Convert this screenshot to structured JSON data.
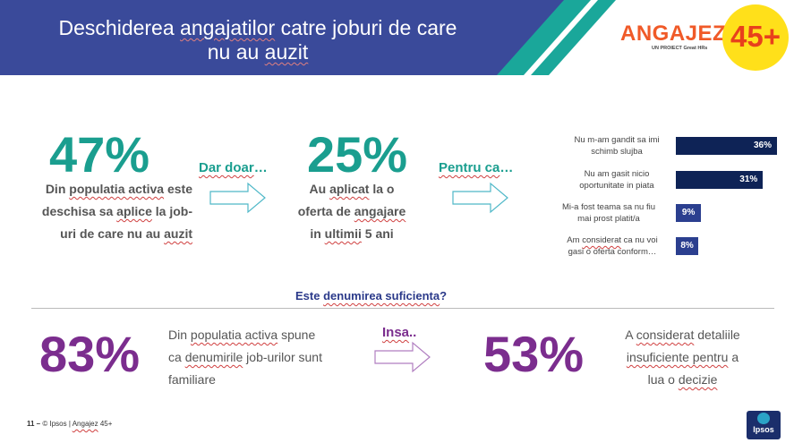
{
  "header": {
    "title_line1": "Deschiderea angajatilor catre joburi de care",
    "title_line2": "nu au auzit",
    "logo_text": "ANGAJEZ",
    "logo_sub": "UN PROIECT Great HRs",
    "logo_num": "45+",
    "colors": {
      "band": "#3a4a9a",
      "stripe": "#1aa79a",
      "logo_circle": "#ffe01a"
    }
  },
  "top": {
    "stat1": {
      "value": "47%",
      "text_lines": [
        "Din populatia activa este",
        "deschisa sa aplice la job-",
        "uri de care nu au auzit"
      ]
    },
    "connector1": "Dar doar…",
    "stat2": {
      "value": "25%",
      "text_lines": [
        "Au aplicat la o",
        "oferta de angajare",
        "in ultimii 5 ani"
      ]
    },
    "connector2": "Pentru ca…"
  },
  "chart_data": {
    "type": "bar",
    "orientation": "horizontal",
    "categories": [
      "Nu m-am gandit sa imi schimb slujba",
      "Nu am gasit nicio oportunitate in piata",
      "Mi-a fost teama sa nu fiu mai prost platit/a",
      "Am considerat ca nu voi gasi o oferta conform…"
    ],
    "category_lines": [
      [
        "Nu m-am gandit sa imi",
        "schimb slujba"
      ],
      [
        "Nu am gasit nicio",
        "oportunitate in piata"
      ],
      [
        "Mi-a fost teama  sa nu fiu",
        "mai prost platit/a"
      ],
      [
        "Am considerat ca nu voi",
        "gasi o oferta conform…"
      ]
    ],
    "values": [
      36,
      31,
      9,
      8
    ],
    "value_labels": [
      "36%",
      "31%",
      "9%",
      "8%"
    ],
    "xlim": [
      0,
      36
    ],
    "grid": false
  },
  "question": "Este denumirea suficienta?",
  "bottom": {
    "stat3": {
      "value": "83%",
      "text_lines": [
        "Din populatia activa spune",
        "ca denumirile job-urilor sunt",
        "familiare"
      ]
    },
    "connector3": "Insa..",
    "stat4": {
      "value": "53%",
      "text_lines": [
        "A considerat detaliile",
        "insuficiente pentru a",
        "lua o decizie"
      ]
    }
  },
  "footer": {
    "page": "11 –",
    "text": "© Ipsos | Angajez 45+"
  },
  "brand": {
    "ipsos": "Ipsos"
  }
}
